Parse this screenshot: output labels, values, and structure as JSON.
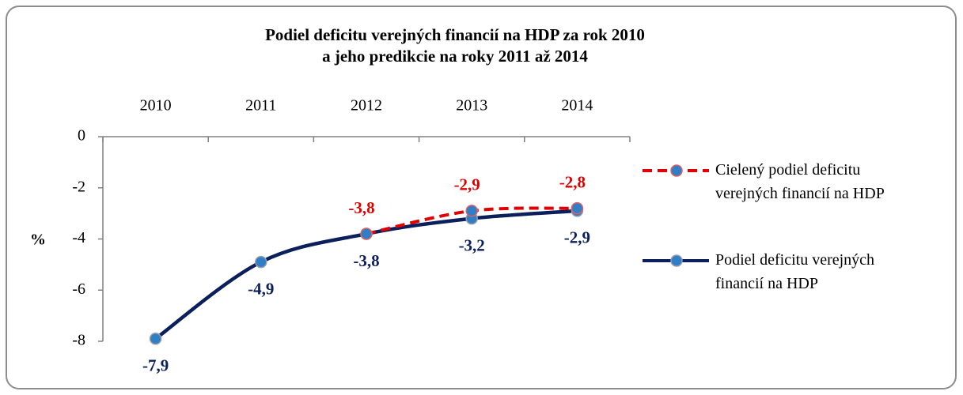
{
  "chart_data": {
    "type": "line",
    "title": [
      "Podiel deficitu verejných financií na HDP za rok 2010",
      "a jeho predikcie na roky 2011 až 2014"
    ],
    "y_label": "%",
    "categories": [
      "2010",
      "2011",
      "2012",
      "2013",
      "2014"
    ],
    "series": [
      {
        "name": "Cielený podiel deficitu verejných financií na HDP",
        "color": "#e00000",
        "dash": true,
        "values": [
          null,
          null,
          -3.8,
          -2.9,
          -2.8
        ],
        "value_labels": [
          null,
          null,
          "-3,8",
          "-2,9",
          "-2,8"
        ]
      },
      {
        "name": "Podiel deficitu verejných financií na HDP",
        "color": "#0a1f5c",
        "dash": false,
        "values": [
          -7.9,
          -4.9,
          -3.8,
          -3.2,
          -2.9
        ],
        "value_labels": [
          "-7,9",
          "-4,9",
          "-3,8",
          "-3,2",
          "-2,9"
        ]
      }
    ],
    "ylim": [
      -8,
      0
    ],
    "yticks": [
      0,
      -2,
      -4,
      -6,
      -8
    ],
    "legend": "right",
    "smooth": true
  }
}
